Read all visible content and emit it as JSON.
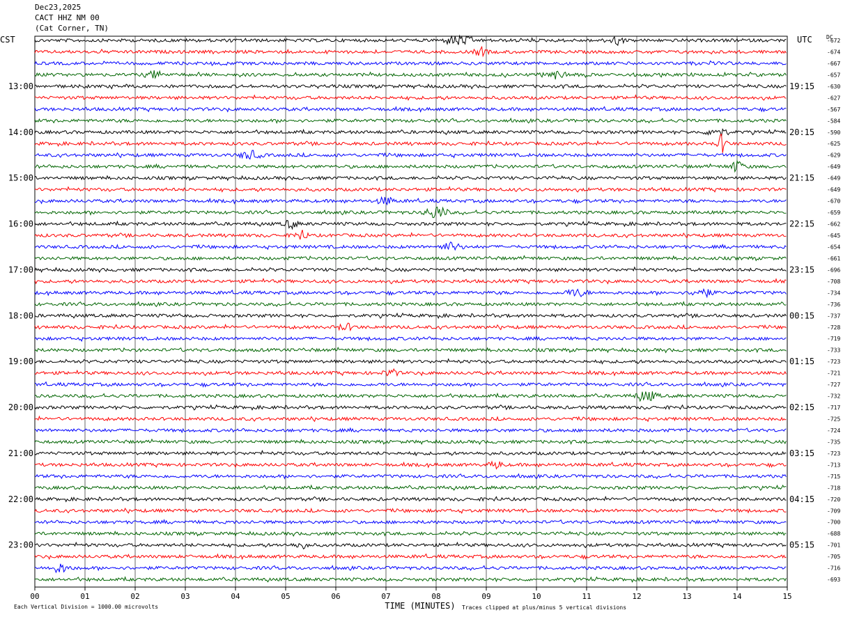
{
  "header": {
    "date": "Dec23,2025",
    "station": "CACT HHZ NM 00",
    "location": "(Cat Corner, TN)"
  },
  "labels": {
    "left_tz": "CST",
    "right_tz": "UTC",
    "dc_header": "DC",
    "xlabel": "TIME (MINUTES)",
    "footnote_left": "Each Vertical Division = 1000.00 microvolts",
    "footnote_right": "Traces clipped at plus/minus 5 vertical divisions"
  },
  "colors": [
    "#000000",
    "#ff0000",
    "#0000ff",
    "#006400"
  ],
  "chart_data": {
    "type": "line",
    "description_kind": "helicorder",
    "xlim": [
      0,
      15
    ],
    "x_ticks": [
      "00",
      "01",
      "02",
      "03",
      "04",
      "05",
      "06",
      "07",
      "08",
      "09",
      "10",
      "11",
      "12",
      "13",
      "14",
      "15"
    ],
    "left_time_labels": [
      "13:00",
      "14:00",
      "15:00",
      "16:00",
      "17:00",
      "18:00",
      "19:00",
      "20:00",
      "21:00",
      "22:00",
      "23:00"
    ],
    "right_time_labels": [
      "19:15",
      "20:15",
      "21:15",
      "22:15",
      "23:15",
      "00:15",
      "01:15",
      "02:15",
      "03:15",
      "04:15",
      "05:15"
    ],
    "dc_offsets": [
      "-672",
      "-674",
      "-667",
      "-657",
      "-630",
      "-627",
      "-567",
      "-584",
      "-590",
      "-625",
      "-629",
      "-649",
      "-649",
      "-649",
      "-670",
      "-659",
      "-662",
      "-645",
      "-654",
      "-661",
      "-696",
      "-708",
      "-734",
      "-736",
      "-737",
      "-728",
      "-719",
      "-733",
      "-723",
      "-721",
      "-727",
      "-732",
      "-717",
      "-725",
      "-724",
      "-735",
      "-723",
      "-713",
      "-715",
      "-718",
      "-720",
      "-709",
      "-700",
      "-688",
      "-701",
      "-705",
      "-716",
      "-693"
    ],
    "grid": true
  }
}
